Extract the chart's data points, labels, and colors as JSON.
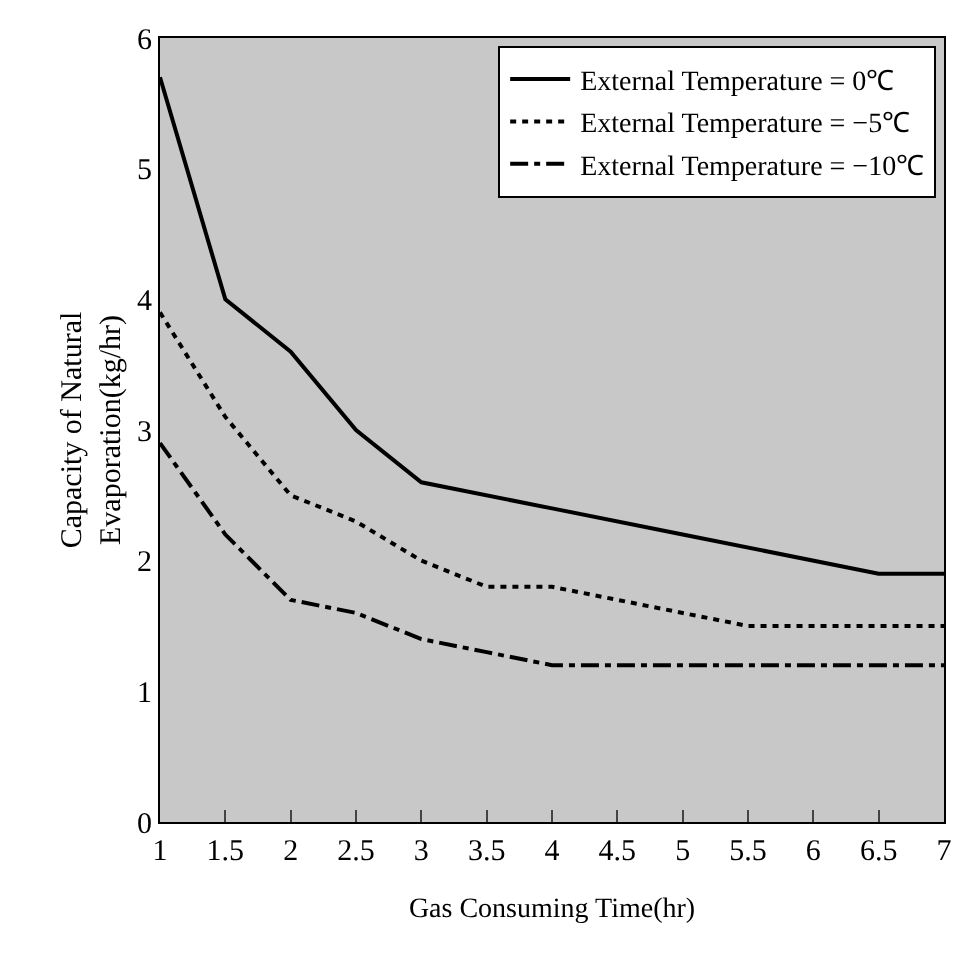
{
  "chart_data": {
    "type": "line",
    "xlabel": "Gas Consuming Time(hr)",
    "ylabel": "Capacity of Natural\nEvaporation(kg/hr)",
    "xlim": [
      1,
      7
    ],
    "xticks": [
      1,
      1.5,
      2,
      2.5,
      3,
      3.5,
      4,
      4.5,
      5,
      5.5,
      6,
      6.5,
      7
    ],
    "ylim": [
      0,
      6
    ],
    "yticks": [
      0,
      1,
      2,
      3,
      4,
      5,
      6
    ],
    "grid": false,
    "legend": "top right",
    "marker": "none",
    "series": [
      {
        "name": "External Temperature = 0℃",
        "color": "#000000",
        "line_style": "solid",
        "x": [
          1,
          1.5,
          2,
          2.5,
          3,
          4,
          5,
          6.5,
          7
        ],
        "values": [
          5.7,
          4.0,
          3.6,
          3.0,
          2.6,
          2.4,
          2.2,
          1.9,
          1.9
        ]
      },
      {
        "name": "External Temperature = −5℃",
        "color": "#000000",
        "line_style": "dotted",
        "x": [
          1,
          1.5,
          2,
          2.5,
          3,
          3.5,
          4,
          4.5,
          5,
          5.5,
          7
        ],
        "values": [
          3.9,
          3.1,
          2.5,
          2.3,
          2.0,
          1.8,
          1.8,
          1.7,
          1.6,
          1.5,
          1.5
        ]
      },
      {
        "name": "External Temperature = −10℃",
        "color": "#000000",
        "line_style": "dashdot",
        "x": [
          1,
          1.5,
          2,
          2.5,
          3,
          3.5,
          4,
          7
        ],
        "values": [
          2.9,
          2.2,
          1.7,
          1.6,
          1.4,
          1.3,
          1.2,
          1.2
        ]
      }
    ]
  }
}
